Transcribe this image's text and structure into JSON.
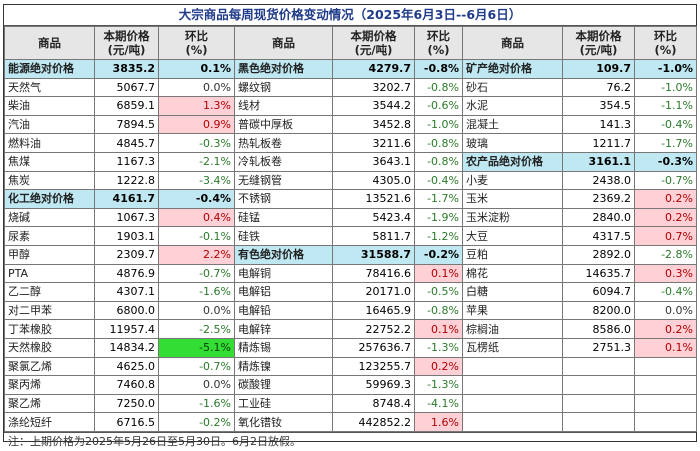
{
  "title": "大宗商品每周现货价格变动情况（2025年6月3日--6月6日）",
  "headers": {
    "name": "商品",
    "price_line1": "本期价格",
    "price_line2": "(元/吨)",
    "chg_line1": "环比",
    "chg_line2": "(%)"
  },
  "col1": [
    {
      "name": "能源绝对价格",
      "price": "3835.2",
      "chg": "0.1%",
      "kind": "hl"
    },
    {
      "name": "天然气",
      "price": "5067.7",
      "chg": "0.0%",
      "kind": "plain"
    },
    {
      "name": "柴油",
      "price": "6859.1",
      "chg": "1.3%",
      "kind": "up"
    },
    {
      "name": "汽油",
      "price": "7894.5",
      "chg": "0.9%",
      "kind": "up"
    },
    {
      "name": "燃料油",
      "price": "4845.7",
      "chg": "-0.3%",
      "kind": "down"
    },
    {
      "name": "焦煤",
      "price": "1167.3",
      "chg": "-2.1%",
      "kind": "down"
    },
    {
      "name": "焦炭",
      "price": "1222.8",
      "chg": "-3.4%",
      "kind": "down"
    },
    {
      "name": "化工绝对价格",
      "price": "4161.7",
      "chg": "-0.4%",
      "kind": "hl"
    },
    {
      "name": "烧碱",
      "price": "1067.3",
      "chg": "0.4%",
      "kind": "up"
    },
    {
      "name": "尿素",
      "price": "1903.1",
      "chg": "-0.1%",
      "kind": "down"
    },
    {
      "name": "甲醇",
      "price": "2309.7",
      "chg": "2.2%",
      "kind": "up"
    },
    {
      "name": "PTA",
      "price": "4876.9",
      "chg": "-0.7%",
      "kind": "down"
    },
    {
      "name": "乙二醇",
      "price": "4307.1",
      "chg": "-1.6%",
      "kind": "down"
    },
    {
      "name": "对二甲苯",
      "price": "6800.0",
      "chg": "0.0%",
      "kind": "plain"
    },
    {
      "name": "丁苯橡胶",
      "price": "11957.4",
      "chg": "-2.5%",
      "kind": "down"
    },
    {
      "name": "天然橡胶",
      "price": "14834.2",
      "chg": "-5.1%",
      "kind": "big"
    },
    {
      "name": "聚氯乙烯",
      "price": "4625.0",
      "chg": "-0.7%",
      "kind": "down"
    },
    {
      "name": "聚丙烯",
      "price": "7460.8",
      "chg": "0.0%",
      "kind": "plain"
    },
    {
      "name": "聚乙烯",
      "price": "7250.0",
      "chg": "-1.6%",
      "kind": "down"
    },
    {
      "name": "涤纶短纤",
      "price": "6716.5",
      "chg": "-0.2%",
      "kind": "down"
    }
  ],
  "col2": [
    {
      "name": "黑色绝对价格",
      "price": "4279.7",
      "chg": "-0.8%",
      "kind": "hl"
    },
    {
      "name": "螺纹钢",
      "price": "3202.7",
      "chg": "-0.8%",
      "kind": "down"
    },
    {
      "name": "线材",
      "price": "3544.2",
      "chg": "-0.6%",
      "kind": "down"
    },
    {
      "name": "普碳中厚板",
      "price": "3452.8",
      "chg": "-1.0%",
      "kind": "down"
    },
    {
      "name": "热轧板卷",
      "price": "3211.6",
      "chg": "-0.8%",
      "kind": "down"
    },
    {
      "name": "冷轧板卷",
      "price": "3643.1",
      "chg": "-0.8%",
      "kind": "down"
    },
    {
      "name": "无缝钢管",
      "price": "4305.0",
      "chg": "-0.4%",
      "kind": "down"
    },
    {
      "name": "不锈钢",
      "price": "13521.6",
      "chg": "-1.7%",
      "kind": "down"
    },
    {
      "name": "硅锰",
      "price": "5423.4",
      "chg": "-1.9%",
      "kind": "down"
    },
    {
      "name": "硅铁",
      "price": "5811.7",
      "chg": "-1.2%",
      "kind": "down"
    },
    {
      "name": "有色绝对价格",
      "price": "31588.7",
      "chg": "-0.2%",
      "kind": "hl"
    },
    {
      "name": "电解铜",
      "price": "78416.6",
      "chg": "0.1%",
      "kind": "up"
    },
    {
      "name": "电解铝",
      "price": "20171.0",
      "chg": "-0.5%",
      "kind": "down"
    },
    {
      "name": "电解铅",
      "price": "16465.9",
      "chg": "-0.8%",
      "kind": "down"
    },
    {
      "name": "电解锌",
      "price": "22752.2",
      "chg": "0.1%",
      "kind": "up"
    },
    {
      "name": "精炼锡",
      "price": "257636.7",
      "chg": "-1.3%",
      "kind": "down"
    },
    {
      "name": "精炼镍",
      "price": "123255.7",
      "chg": "0.2%",
      "kind": "up"
    },
    {
      "name": "碳酸锂",
      "price": "59969.3",
      "chg": "-1.3%",
      "kind": "down"
    },
    {
      "name": "工业硅",
      "price": "8748.4",
      "chg": "-4.1%",
      "kind": "down"
    },
    {
      "name": "氧化镨钕",
      "price": "442852.2",
      "chg": "1.6%",
      "kind": "up"
    }
  ],
  "col3": [
    {
      "name": "矿产绝对价格",
      "price": "109.7",
      "chg": "-1.0%",
      "kind": "hl"
    },
    {
      "name": "砂石",
      "price": "76.2",
      "chg": "-1.0%",
      "kind": "down"
    },
    {
      "name": "水泥",
      "price": "354.5",
      "chg": "-1.1%",
      "kind": "down"
    },
    {
      "name": "混凝土",
      "price": "141.3",
      "chg": "-0.4%",
      "kind": "down"
    },
    {
      "name": "玻璃",
      "price": "1211.7",
      "chg": "-1.7%",
      "kind": "down"
    },
    {
      "name": "农产品绝对价格",
      "price": "3161.1",
      "chg": "-0.3%",
      "kind": "hl"
    },
    {
      "name": "小麦",
      "price": "2438.0",
      "chg": "-0.7%",
      "kind": "down"
    },
    {
      "name": "玉米",
      "price": "2369.2",
      "chg": "0.2%",
      "kind": "up"
    },
    {
      "name": "玉米淀粉",
      "price": "2840.0",
      "chg": "0.2%",
      "kind": "up"
    },
    {
      "name": "大豆",
      "price": "4317.5",
      "chg": "0.7%",
      "kind": "up"
    },
    {
      "name": "豆粕",
      "price": "2892.0",
      "chg": "-2.8%",
      "kind": "down"
    },
    {
      "name": "棉花",
      "price": "14635.7",
      "chg": "0.3%",
      "kind": "up"
    },
    {
      "name": "白糖",
      "price": "6094.7",
      "chg": "-0.4%",
      "kind": "down"
    },
    {
      "name": "苹果",
      "price": "8200.0",
      "chg": "0.0%",
      "kind": "plain"
    },
    {
      "name": "棕榈油",
      "price": "8586.0",
      "chg": "0.2%",
      "kind": "up"
    },
    {
      "name": "瓦楞纸",
      "price": "2751.3",
      "chg": "0.1%",
      "kind": "up"
    }
  ],
  "note": "注：上期价格为2025年5月26日至5月30日。6月2日放假。"
}
